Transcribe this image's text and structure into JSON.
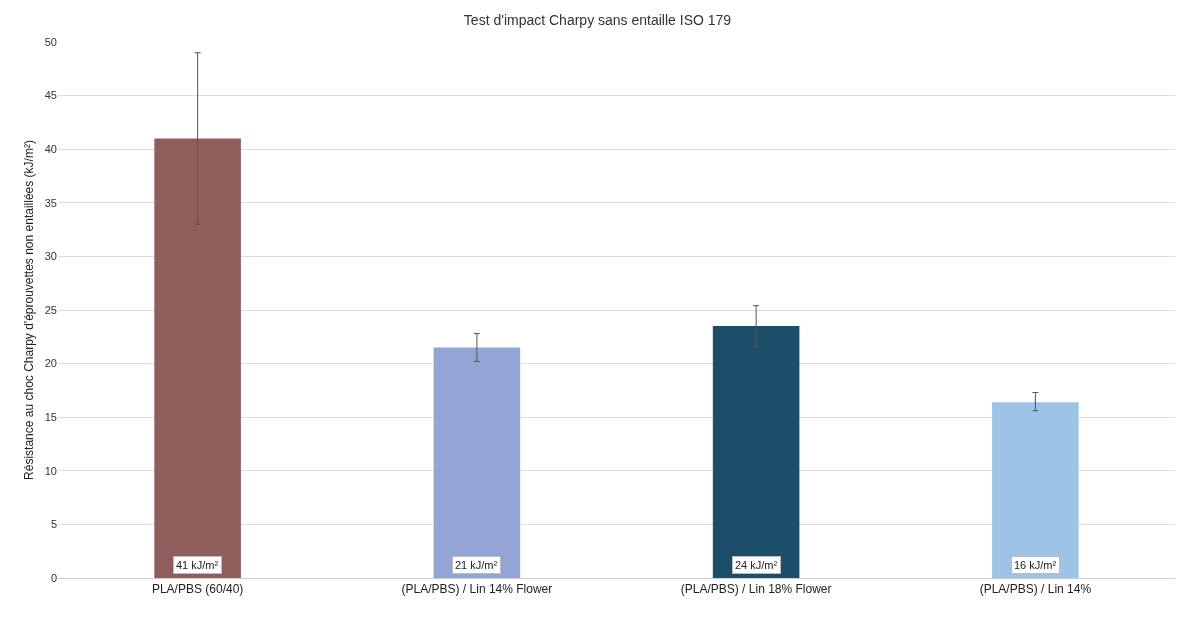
{
  "chart_data": {
    "type": "bar",
    "title": "Test d'impact Charpy sans entaille ISO 179",
    "ylabel": "Résistance au choc Charpy d'éprouvettes non entaillées (kJ/m²)",
    "categories": [
      "PLA/PBS (60/40)",
      "(PLA/PBS) / Lin 14% Flower",
      "(PLA/PBS) / Lin 18% Flower",
      "(PLA/PBS) / Lin 14%"
    ],
    "values": [
      41,
      21.5,
      23.5,
      16.4
    ],
    "colors": [
      "#8f5e5c",
      "#93a5d4",
      "#1a4e69",
      "#9dc3e6"
    ],
    "errors": [
      [
        33,
        49
      ],
      [
        20.2,
        22.8
      ],
      [
        21.6,
        25.4
      ],
      [
        15.6,
        17.3
      ]
    ],
    "value_labels": [
      "41 kJ/m²",
      "21 kJ/m²",
      "24 kJ/m²",
      "16 kJ/m²"
    ],
    "ylim": [
      0,
      50
    ],
    "yticks": [
      0,
      5,
      10,
      15,
      20,
      25,
      30,
      35,
      40,
      45,
      50
    ],
    "grid": "y"
  }
}
